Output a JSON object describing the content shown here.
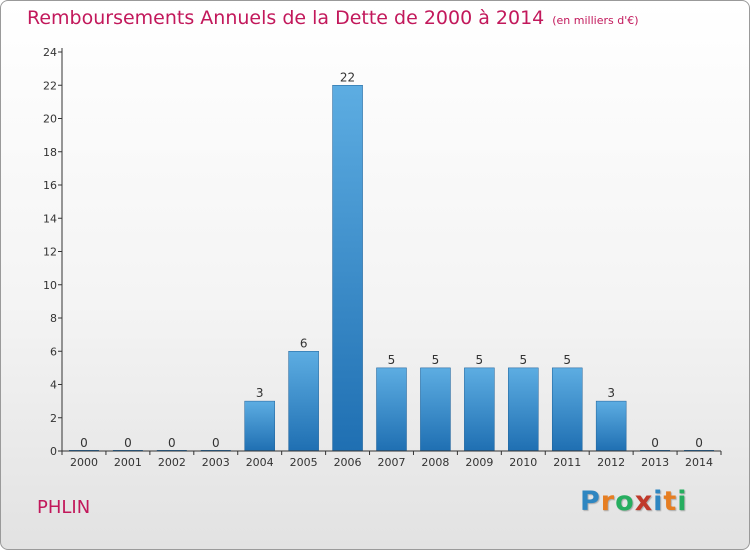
{
  "header": {
    "title": "Remboursements Annuels de la Dette de 2000 à 2014",
    "unit": "(en milliers d'€)"
  },
  "commune": "PHLIN",
  "logo": {
    "text": "Proxiti",
    "letter_colors": [
      "#2e86c1",
      "#e67e22",
      "#27ae60",
      "#c0392b",
      "#2e86c1",
      "#e67e22",
      "#27ae60"
    ]
  },
  "colors": {
    "accent": "#c2185b",
    "bar_top": "#5dade2",
    "bar_bottom": "#1f6fb2",
    "axis": "#333333",
    "grid": "#cfcfcf"
  },
  "chart_data": {
    "type": "bar",
    "title": "Remboursements Annuels de la Dette de 2000 à 2014",
    "subtitle": "(en milliers d'€)",
    "xlabel": "",
    "ylabel": "",
    "categories": [
      "2000",
      "2001",
      "2002",
      "2003",
      "2004",
      "2005",
      "2006",
      "2007",
      "2008",
      "2009",
      "2010",
      "2011",
      "2012",
      "2013",
      "2014"
    ],
    "values": [
      0,
      0,
      0,
      0,
      3,
      6,
      22,
      5,
      5,
      5,
      5,
      5,
      3,
      0,
      0
    ],
    "ylim": [
      0,
      24
    ],
    "yticks": [
      0,
      2,
      4,
      6,
      8,
      10,
      12,
      14,
      16,
      18,
      20,
      22,
      24
    ],
    "grid": false,
    "legend": "none",
    "data_labels": true
  }
}
